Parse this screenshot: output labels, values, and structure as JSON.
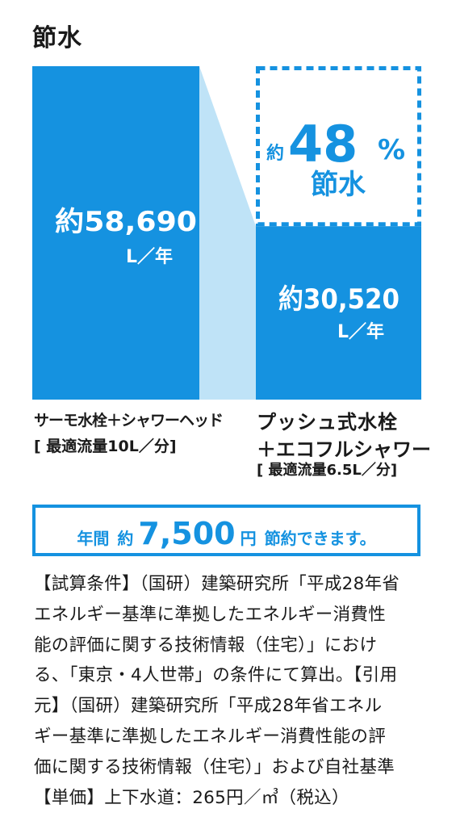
{
  "title": "節水",
  "chart_data": {
    "type": "bar",
    "categories": [
      "サーモ水栓＋シャワーヘッド",
      "プッシュ式水栓＋エコフルシャワー"
    ],
    "values": [
      58690,
      30520
    ],
    "unit": "L／年",
    "value_labels": [
      "約58,690",
      "約30,520"
    ],
    "sublabels": [
      "[ 最適流量10L／分]",
      "[ 最適流量6.5L／分]"
    ],
    "savings": {
      "prefix": "約",
      "value": "48",
      "unit": "%",
      "caption": "節水"
    },
    "colors": {
      "bar": "#1592e0",
      "connector": "#bfe3f7",
      "dash": "#1592e0"
    }
  },
  "labels": {
    "left_line1": "サーモ水栓＋シャワーヘッド",
    "left_line2": "[ 最適流量10L／分]",
    "right_line1": "プッシュ式水栓",
    "right_line2": "＋エコフルシャワー",
    "right_line3": "[ 最適流量6.5L／分]"
  },
  "banner": {
    "part1": "年間",
    "part2": "約",
    "amount": "7,500",
    "part3": "円",
    "part4": "節約できます。"
  },
  "notes": [
    "【試算条件】（国研）建築研究所「平成28年省",
    "エネルギー基準に準拠したエネルギー消費性",
    "能の評価に関する技術情報（住宅）」におけ",
    "る、「東京・4人世帯」の条件にて算出。【引用",
    "元】（国研）建築研究所「平成28年省エネル",
    "ギー基準に準拠したエネルギー消費性能の評",
    "価に関する技術情報（住宅）」および自社基準",
    "【単価】上下水道：265円／㎥（税込）"
  ]
}
